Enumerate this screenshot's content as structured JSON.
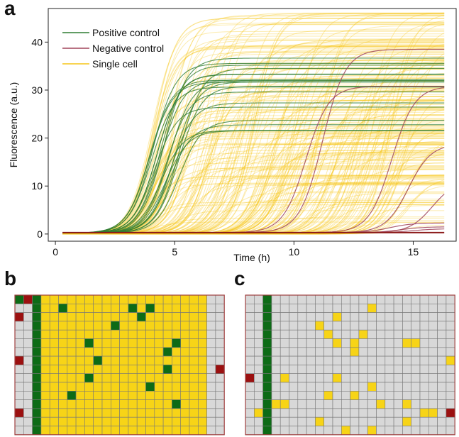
{
  "panels": {
    "a": "a",
    "b": "b",
    "c": "c"
  },
  "colors": {
    "positive": "#2e7d32",
    "negative": "#a0445a",
    "single": "#f5c518",
    "plate_yellow": "#f7d417",
    "plate_grey": "#d8d8d8",
    "plate_green": "#0d6b16",
    "plate_red": "#9b1010",
    "plate_border": "#a04040"
  },
  "chart_data": {
    "type": "line",
    "xlabel": "Time (h)",
    "ylabel": "Fluorescence (a.u.)",
    "xlim": [
      -0.3,
      16.8
    ],
    "ylim": [
      -1.5,
      47
    ],
    "xticks": [
      0,
      5,
      10,
      15
    ],
    "yticks": [
      0,
      10,
      20,
      30,
      40
    ],
    "grid": false,
    "legend_position": "top-left",
    "legend": [
      "Positive control",
      "Negative control",
      "Single cell"
    ],
    "series": [
      {
        "name": "Positive control",
        "model": "sigmoid",
        "count": 20,
        "x_range": [
          0.3,
          16.3
        ],
        "midpoint_range": [
          3.8,
          5.3
        ],
        "plateau_range": [
          21,
          36.5
        ],
        "baseline": 0.2
      },
      {
        "name": "Negative control",
        "model": "sigmoid",
        "x_range": [
          0.3,
          16.3
        ],
        "baseline": 0.3,
        "curves": [
          {
            "midpoint": 10.5,
            "plateau": 30.5
          },
          {
            "midpoint": 11.2,
            "plateau": 38.2
          },
          {
            "midpoint": 14.1,
            "plateau": 30.5
          },
          {
            "midpoint": 14.8,
            "plateau": 18.5
          },
          {
            "midpoint": 15.8,
            "plateau": 10.8
          },
          {
            "midpoint": 14.0,
            "plateau": 2.0
          },
          {
            "midpoint": 14.5,
            "plateau": 1.2
          },
          {
            "midpoint": 15.0,
            "plateau": 0.8
          }
        ]
      },
      {
        "name": "Single cell",
        "model": "sigmoid",
        "count": 260,
        "x_range": [
          0.3,
          16.3
        ],
        "midpoint_range": [
          4.0,
          15.0
        ],
        "plateau_range": [
          1,
          46.5
        ],
        "baseline": 0
      }
    ]
  },
  "plates": [
    {
      "panel": "b",
      "rows": 16,
      "cols": 24,
      "cells": [
        "GRGYYYYYYYYYYYYYYYYYYYWW",
        "WWGYYGYYYYYYYGYGYYYYYYWW",
        "RWGYYYYYYYYYYYGYYYYYYYWW",
        "WWGYYYYYYYYGYYYYYYYYYYWW",
        "WWGYYYYYYYYYYYYYYYYYYYWW",
        "WWGYYYYYGYYYYYYYYYGYYYWW",
        "WWGYYYYYYYYYYYYYYGYYYYWW",
        "RWGYYYYYYGYYYYYYYYYYYYWW",
        "WWGYYYYYYYYYYYYYYGYYYYWR",
        "WWGYYYYYGYYYYYYYYYYYYYWW",
        "WWGYYYYYYYYYYYYGYYYYYYWW",
        "WWGYYYGYYYYYYYYYYYYYYYWW",
        "WWGYYYYYYYYYYYYYYYGYYYWW",
        "RWGYYYYYYYYYYYYYYYYYYYWW",
        "WWGYYYYYYYYYYYYYYYYYYYWW",
        "WWGYYYYYYYYYYYYYYYYYYYWW"
      ]
    },
    {
      "panel": "c",
      "rows": 16,
      "cols": 24,
      "cells": [
        "WWGWWWWWWWWWWWWWWWWWWWWW",
        "WWGWWWWWWWWWWWYWWWWWWWWW",
        "WWGWWWWWWWYWWWWWWWWWWWWW",
        "WWGWWWWWYWWWWWWWWWWWWWWW",
        "WWGWWWWWWYWWWYWWWWWWWWWW",
        "WWGWWWWWWWYWYWWWWWYYWWWW",
        "WWGWWWWWWWWWYWWWWWWWWWWW",
        "WWGWWWWWWWWWWWWWWWWWWWWY",
        "WWGWWWWWWWWWWWWWWWWWWWWW",
        "RWGWYWWWWWYWWWWWWWWWWWWW",
        "WWGWWWWWWWWWWWYWWWWWWWWW",
        "WWGWWWWWWYWWYWWWWWWWWWWW",
        "WWGYYWWWWWWWWWWYWWYWWWWW",
        "WYGWWWWWWWWWWWWWWWWWYYWR",
        "WWGWWWWWYWWWWWWWWWYWWWWW",
        "WWGWWWWWWWWYWWYWWWWWWWWW"
      ]
    }
  ]
}
